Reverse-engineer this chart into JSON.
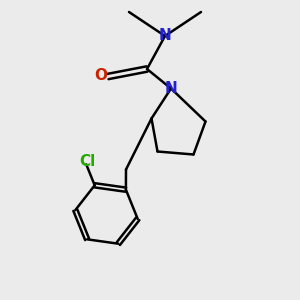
{
  "background_color": "#ebebeb",
  "bond_color": "#000000",
  "N_color": "#2222cc",
  "O_color": "#cc2200",
  "Cl_color": "#22aa00",
  "line_width": 1.8,
  "font_size": 11,
  "fig_width": 3.0,
  "fig_height": 3.0,
  "dpi": 100,
  "xlim": [
    0,
    10
  ],
  "ylim": [
    0,
    10
  ]
}
